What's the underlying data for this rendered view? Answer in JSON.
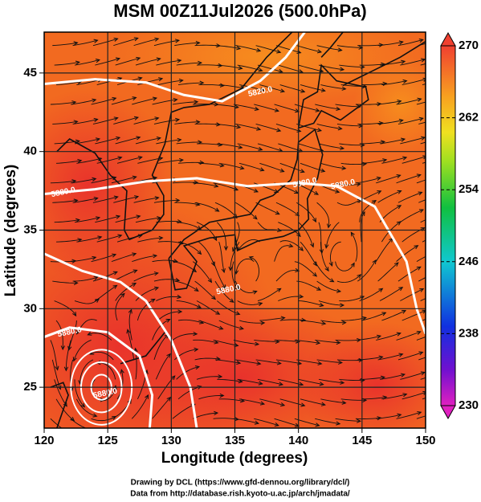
{
  "chart_data": {
    "type": "map",
    "title": "MSM 00Z11Jul2026 (500.0hPa)",
    "x_label": "Longitude (degrees)",
    "y_label": "Latitude  (degrees)",
    "xlim": [
      120,
      150
    ],
    "xticks": [
      120,
      125,
      130,
      135,
      140,
      145,
      150
    ],
    "ylim": [
      22.4,
      47.6
    ],
    "yticks": [
      25,
      30,
      35,
      40,
      45
    ],
    "grid": true,
    "colorbar": {
      "lim": [
        230,
        270
      ],
      "ticks": [
        230,
        238,
        246,
        254,
        262,
        270
      ]
    },
    "contour_labels": [
      "5820.0",
      "5880.0",
      "5880.0",
      "5880.0",
      "5880.0",
      "5880.0",
      "5880.0"
    ],
    "credits": [
      "Drawing by DCL (https://www.gfd-dennou.org/library/dcl/)",
      "Data from http://database.rish.kyoto-u.ac.jp/arch/jmadata/"
    ]
  }
}
